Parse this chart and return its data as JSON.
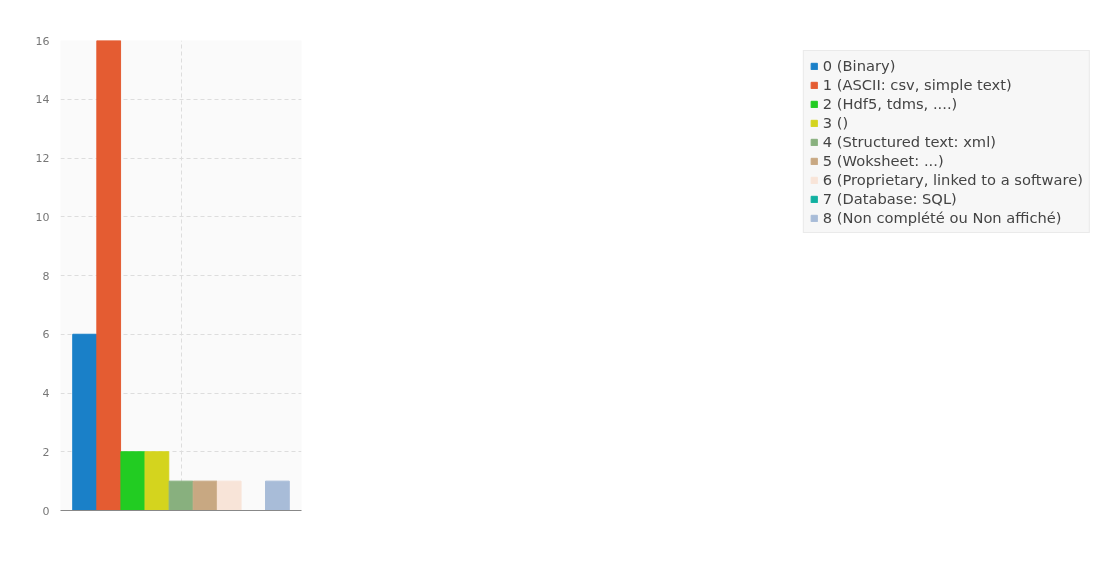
{
  "chart_data": {
    "type": "bar",
    "categories": [
      null
    ],
    "series": [
      {
        "name": "0 (Binary)",
        "color": "#1a80c8",
        "values": [
          6
        ]
      },
      {
        "name": "1 (ASCII: csv, simple text)",
        "color": "#e45c32",
        "values": [
          16
        ]
      },
      {
        "name": "2 (Hdf5, tdms, ....)",
        "color": "#22cc22",
        "values": [
          2
        ]
      },
      {
        "name": "3 ()",
        "color": "#d4d41e",
        "values": [
          2
        ]
      },
      {
        "name": "4 (Structured text: xml)",
        "color": "#88b07e",
        "values": [
          1
        ]
      },
      {
        "name": "5 (Woksheet: ...)",
        "color": "#c8a882",
        "values": [
          1
        ]
      },
      {
        "name": "6 (Proprietary, linked to a software)",
        "color": "#f8e4d8",
        "values": [
          1
        ]
      },
      {
        "name": "7 (Database: SQL)",
        "color": "#10b0a0",
        "values": [
          0
        ]
      },
      {
        "name": "8 (Non complété ou Non affiché)",
        "color": "#a8bcd8",
        "values": [
          1
        ]
      }
    ],
    "ylim": [
      0,
      16
    ],
    "yticks": [
      0,
      2,
      4,
      6,
      8,
      10,
      12,
      14,
      16
    ],
    "grid": true,
    "legend": "top right",
    "tick_labels": "y"
  }
}
